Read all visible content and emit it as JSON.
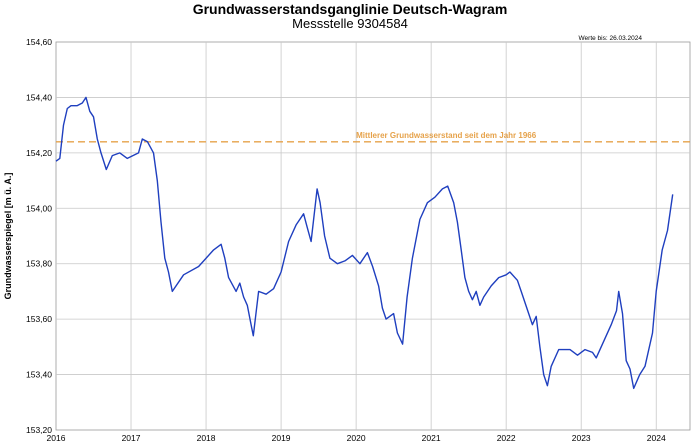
{
  "header": {
    "title": "Grundwasserstandsganglinie Deutsch-Wagram",
    "subtitle": "Messstelle 9304584",
    "stand_label": "Werte bis: 26.03.2024"
  },
  "colors": {
    "series": "#1f3fbf",
    "reference": "#e6a24a",
    "grid": "#c8c8c8"
  },
  "chart_data": {
    "type": "line",
    "title": "Grundwasserstandsganglinie Deutsch-Wagram",
    "subtitle": "Messstelle 9304584",
    "xlabel": "",
    "ylabel": "Grundwasserspiegel [m ü. A.]",
    "xlim": [
      2016.0,
      2024.45
    ],
    "ylim": [
      153.2,
      154.6
    ],
    "grid": true,
    "x_ticks": [
      "2016",
      "2017",
      "2018",
      "2019",
      "2020",
      "2021",
      "2022",
      "2023",
      "2024"
    ],
    "y_ticks": [
      "153,20",
      "153,40",
      "153,60",
      "153,80",
      "154,00",
      "154,20",
      "154,40",
      "154,60"
    ],
    "reference_line": {
      "label": "Mittlerer Grundwasserstand seit dem Jahr 1966",
      "value": 154.24
    },
    "series": [
      {
        "points": [
          [
            2016.0,
            154.17
          ],
          [
            2016.05,
            154.18
          ],
          [
            2016.1,
            154.3
          ],
          [
            2016.15,
            154.36
          ],
          [
            2016.2,
            154.37
          ],
          [
            2016.28,
            154.37
          ],
          [
            2016.35,
            154.38
          ],
          [
            2016.4,
            154.4
          ],
          [
            2016.45,
            154.35
          ],
          [
            2016.5,
            154.33
          ],
          [
            2016.55,
            154.25
          ],
          [
            2016.6,
            154.2
          ],
          [
            2016.67,
            154.14
          ],
          [
            2016.75,
            154.19
          ],
          [
            2016.85,
            154.2
          ],
          [
            2016.95,
            154.18
          ],
          [
            2017.1,
            154.2
          ],
          [
            2017.15,
            154.25
          ],
          [
            2017.22,
            154.24
          ],
          [
            2017.3,
            154.2
          ],
          [
            2017.35,
            154.1
          ],
          [
            2017.4,
            153.95
          ],
          [
            2017.45,
            153.82
          ],
          [
            2017.5,
            153.77
          ],
          [
            2017.55,
            153.7
          ],
          [
            2017.7,
            153.76
          ],
          [
            2017.9,
            153.79
          ],
          [
            2018.1,
            153.85
          ],
          [
            2018.2,
            153.87
          ],
          [
            2018.25,
            153.82
          ],
          [
            2018.3,
            153.75
          ],
          [
            2018.4,
            153.7
          ],
          [
            2018.45,
            153.73
          ],
          [
            2018.5,
            153.68
          ],
          [
            2018.55,
            153.65
          ],
          [
            2018.6,
            153.58
          ],
          [
            2018.63,
            153.54
          ],
          [
            2018.7,
            153.7
          ],
          [
            2018.8,
            153.69
          ],
          [
            2018.9,
            153.71
          ],
          [
            2019.0,
            153.77
          ],
          [
            2019.1,
            153.88
          ],
          [
            2019.2,
            153.94
          ],
          [
            2019.3,
            153.98
          ],
          [
            2019.35,
            153.93
          ],
          [
            2019.4,
            153.88
          ],
          [
            2019.45,
            154.0
          ],
          [
            2019.48,
            154.07
          ],
          [
            2019.52,
            154.02
          ],
          [
            2019.58,
            153.9
          ],
          [
            2019.65,
            153.82
          ],
          [
            2019.75,
            153.8
          ],
          [
            2019.85,
            153.81
          ],
          [
            2019.95,
            153.83
          ],
          [
            2020.05,
            153.8
          ],
          [
            2020.15,
            153.84
          ],
          [
            2020.22,
            153.79
          ],
          [
            2020.3,
            153.72
          ],
          [
            2020.35,
            153.64
          ],
          [
            2020.4,
            153.6
          ],
          [
            2020.5,
            153.62
          ],
          [
            2020.55,
            153.55
          ],
          [
            2020.62,
            153.51
          ],
          [
            2020.68,
            153.68
          ],
          [
            2020.75,
            153.82
          ],
          [
            2020.85,
            153.96
          ],
          [
            2020.95,
            154.02
          ],
          [
            2021.05,
            154.04
          ],
          [
            2021.15,
            154.07
          ],
          [
            2021.22,
            154.08
          ],
          [
            2021.3,
            154.02
          ],
          [
            2021.35,
            153.95
          ],
          [
            2021.4,
            153.85
          ],
          [
            2021.45,
            153.75
          ],
          [
            2021.5,
            153.7
          ],
          [
            2021.55,
            153.67
          ],
          [
            2021.6,
            153.7
          ],
          [
            2021.65,
            153.65
          ],
          [
            2021.7,
            153.68
          ],
          [
            2021.8,
            153.72
          ],
          [
            2021.9,
            153.75
          ],
          [
            2022.0,
            153.76
          ],
          [
            2022.05,
            153.77
          ],
          [
            2022.15,
            153.74
          ],
          [
            2022.2,
            153.7
          ],
          [
            2022.3,
            153.62
          ],
          [
            2022.35,
            153.58
          ],
          [
            2022.4,
            153.61
          ],
          [
            2022.45,
            153.5
          ],
          [
            2022.5,
            153.4
          ],
          [
            2022.55,
            153.36
          ],
          [
            2022.6,
            153.43
          ],
          [
            2022.7,
            153.49
          ],
          [
            2022.85,
            153.49
          ],
          [
            2022.95,
            153.47
          ],
          [
            2023.05,
            153.49
          ],
          [
            2023.15,
            153.48
          ],
          [
            2023.2,
            153.46
          ],
          [
            2023.3,
            153.52
          ],
          [
            2023.4,
            153.58
          ],
          [
            2023.47,
            153.63
          ],
          [
            2023.5,
            153.7
          ],
          [
            2023.55,
            153.62
          ],
          [
            2023.6,
            153.45
          ],
          [
            2023.65,
            153.42
          ],
          [
            2023.7,
            153.35
          ],
          [
            2023.78,
            153.4
          ],
          [
            2023.85,
            153.43
          ],
          [
            2023.95,
            153.55
          ],
          [
            2024.0,
            153.7
          ],
          [
            2024.08,
            153.85
          ],
          [
            2024.15,
            153.92
          ],
          [
            2024.22,
            154.05
          ]
        ]
      }
    ]
  }
}
